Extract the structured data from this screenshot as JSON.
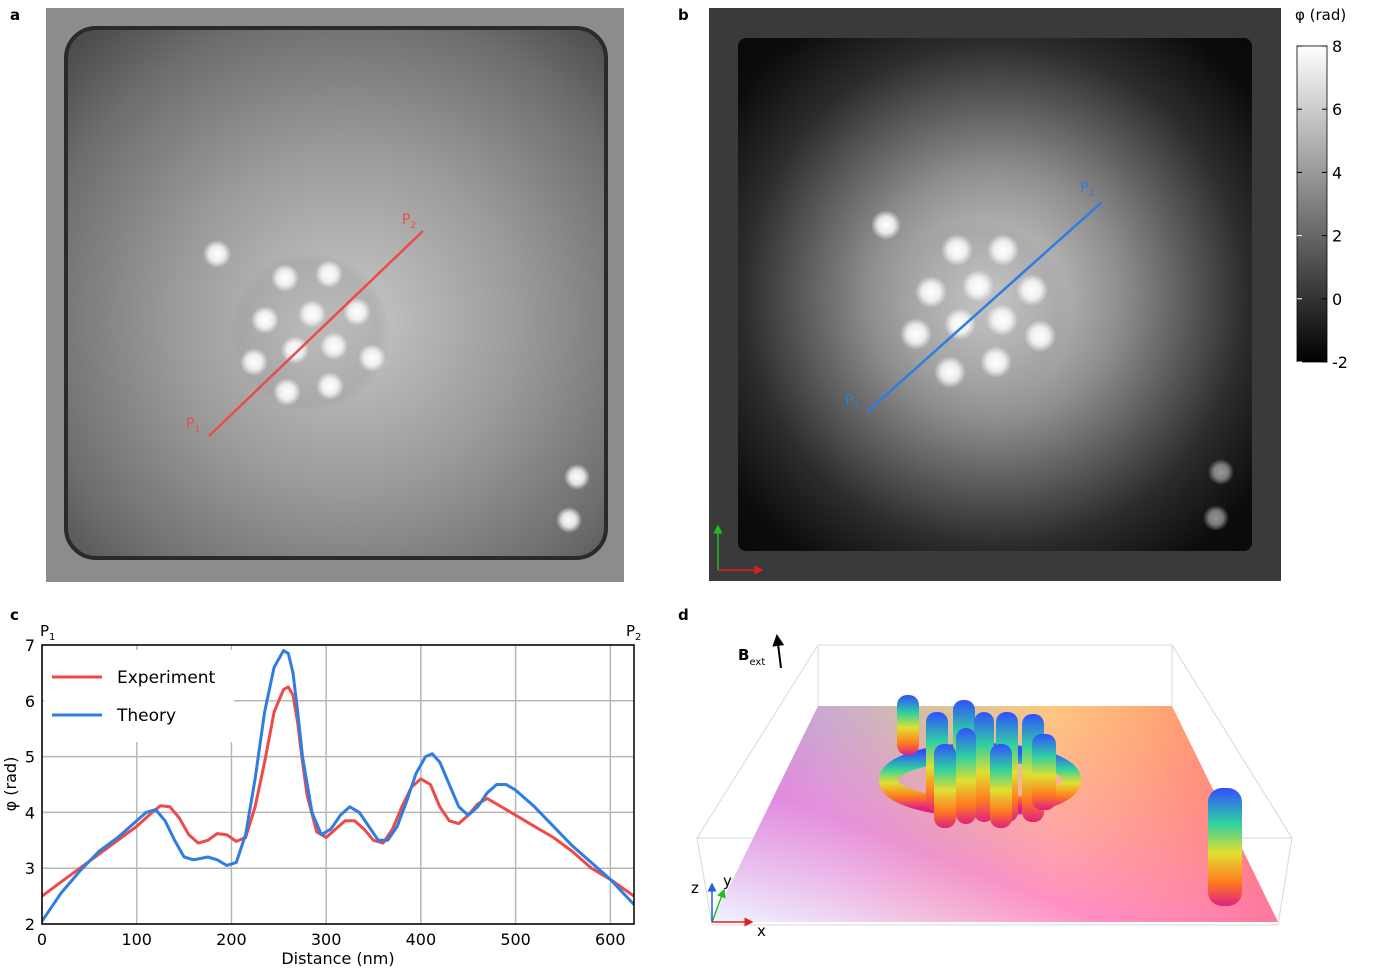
{
  "panels": {
    "a": {
      "letter": "a",
      "p1": "P",
      "p1_sub": "1",
      "p2": "P",
      "p2_sub": "2"
    },
    "b": {
      "letter": "b",
      "p1": "P",
      "p1_sub": "1",
      "p2": "P",
      "p2_sub": "2"
    },
    "c": {
      "letter": "c"
    },
    "d": {
      "letter": "d"
    }
  },
  "colorbar": {
    "label": "φ (rad)",
    "ticks": [
      "8",
      "6",
      "4",
      "2",
      "0",
      "-2"
    ],
    "range": [
      -2,
      8
    ]
  },
  "chart_data": {
    "type": "line",
    "xlabel": "Distance (nm)",
    "ylabel": "φ (rad)",
    "xlim": [
      0,
      625
    ],
    "ylim": [
      2,
      7
    ],
    "xticks": [
      "0",
      "100",
      "200",
      "300",
      "400",
      "500",
      "600"
    ],
    "yticks": [
      "2",
      "3",
      "4",
      "5",
      "6",
      "7"
    ],
    "top_left_label": "P",
    "top_left_sub": "1",
    "top_right_label": "P",
    "top_right_sub": "2",
    "grid": true,
    "legend_position": "top-left",
    "series": [
      {
        "name": "Experiment",
        "color": "#ef4a4a",
        "x": [
          0,
          20,
          40,
          60,
          80,
          100,
          115,
          125,
          135,
          145,
          155,
          165,
          175,
          185,
          195,
          205,
          215,
          225,
          235,
          245,
          255,
          260,
          265,
          270,
          275,
          280,
          290,
          300,
          310,
          320,
          330,
          340,
          350,
          360,
          370,
          380,
          390,
          400,
          410,
          420,
          430,
          440,
          450,
          460,
          470,
          480,
          500,
          520,
          540,
          560,
          580,
          600,
          625
        ],
        "y": [
          2.5,
          2.75,
          3.0,
          3.25,
          3.5,
          3.75,
          3.98,
          4.12,
          4.1,
          3.9,
          3.6,
          3.45,
          3.5,
          3.62,
          3.6,
          3.48,
          3.55,
          4.1,
          4.9,
          5.8,
          6.2,
          6.25,
          6.1,
          5.6,
          4.9,
          4.3,
          3.65,
          3.55,
          3.7,
          3.85,
          3.85,
          3.7,
          3.5,
          3.45,
          3.7,
          4.1,
          4.45,
          4.6,
          4.5,
          4.1,
          3.85,
          3.8,
          3.95,
          4.15,
          4.25,
          4.15,
          3.95,
          3.75,
          3.55,
          3.3,
          3.0,
          2.8,
          2.5
        ]
      },
      {
        "name": "Theory",
        "color": "#2e7de0",
        "x": [
          0,
          20,
          40,
          60,
          80,
          100,
          110,
          120,
          130,
          140,
          150,
          160,
          175,
          185,
          195,
          205,
          215,
          225,
          235,
          245,
          255,
          260,
          265,
          270,
          275,
          285,
          295,
          305,
          315,
          325,
          335,
          345,
          355,
          365,
          375,
          385,
          395,
          405,
          412,
          420,
          430,
          440,
          450,
          460,
          470,
          480,
          490,
          500,
          520,
          540,
          560,
          580,
          600,
          625
        ],
        "y": [
          2.05,
          2.55,
          2.95,
          3.3,
          3.55,
          3.85,
          4.0,
          4.05,
          3.85,
          3.5,
          3.2,
          3.15,
          3.2,
          3.15,
          3.05,
          3.1,
          3.6,
          4.6,
          5.8,
          6.6,
          6.9,
          6.85,
          6.5,
          5.8,
          5.0,
          4.0,
          3.6,
          3.7,
          3.95,
          4.1,
          4.0,
          3.75,
          3.5,
          3.5,
          3.75,
          4.2,
          4.7,
          5.0,
          5.05,
          4.9,
          4.5,
          4.1,
          3.95,
          4.1,
          4.35,
          4.5,
          4.5,
          4.4,
          4.1,
          3.75,
          3.4,
          3.1,
          2.8,
          2.35
        ]
      }
    ]
  },
  "panel_d": {
    "field_label": "B",
    "field_sub": "ext",
    "axes": {
      "x": "x",
      "y": "y",
      "z": "z"
    }
  }
}
